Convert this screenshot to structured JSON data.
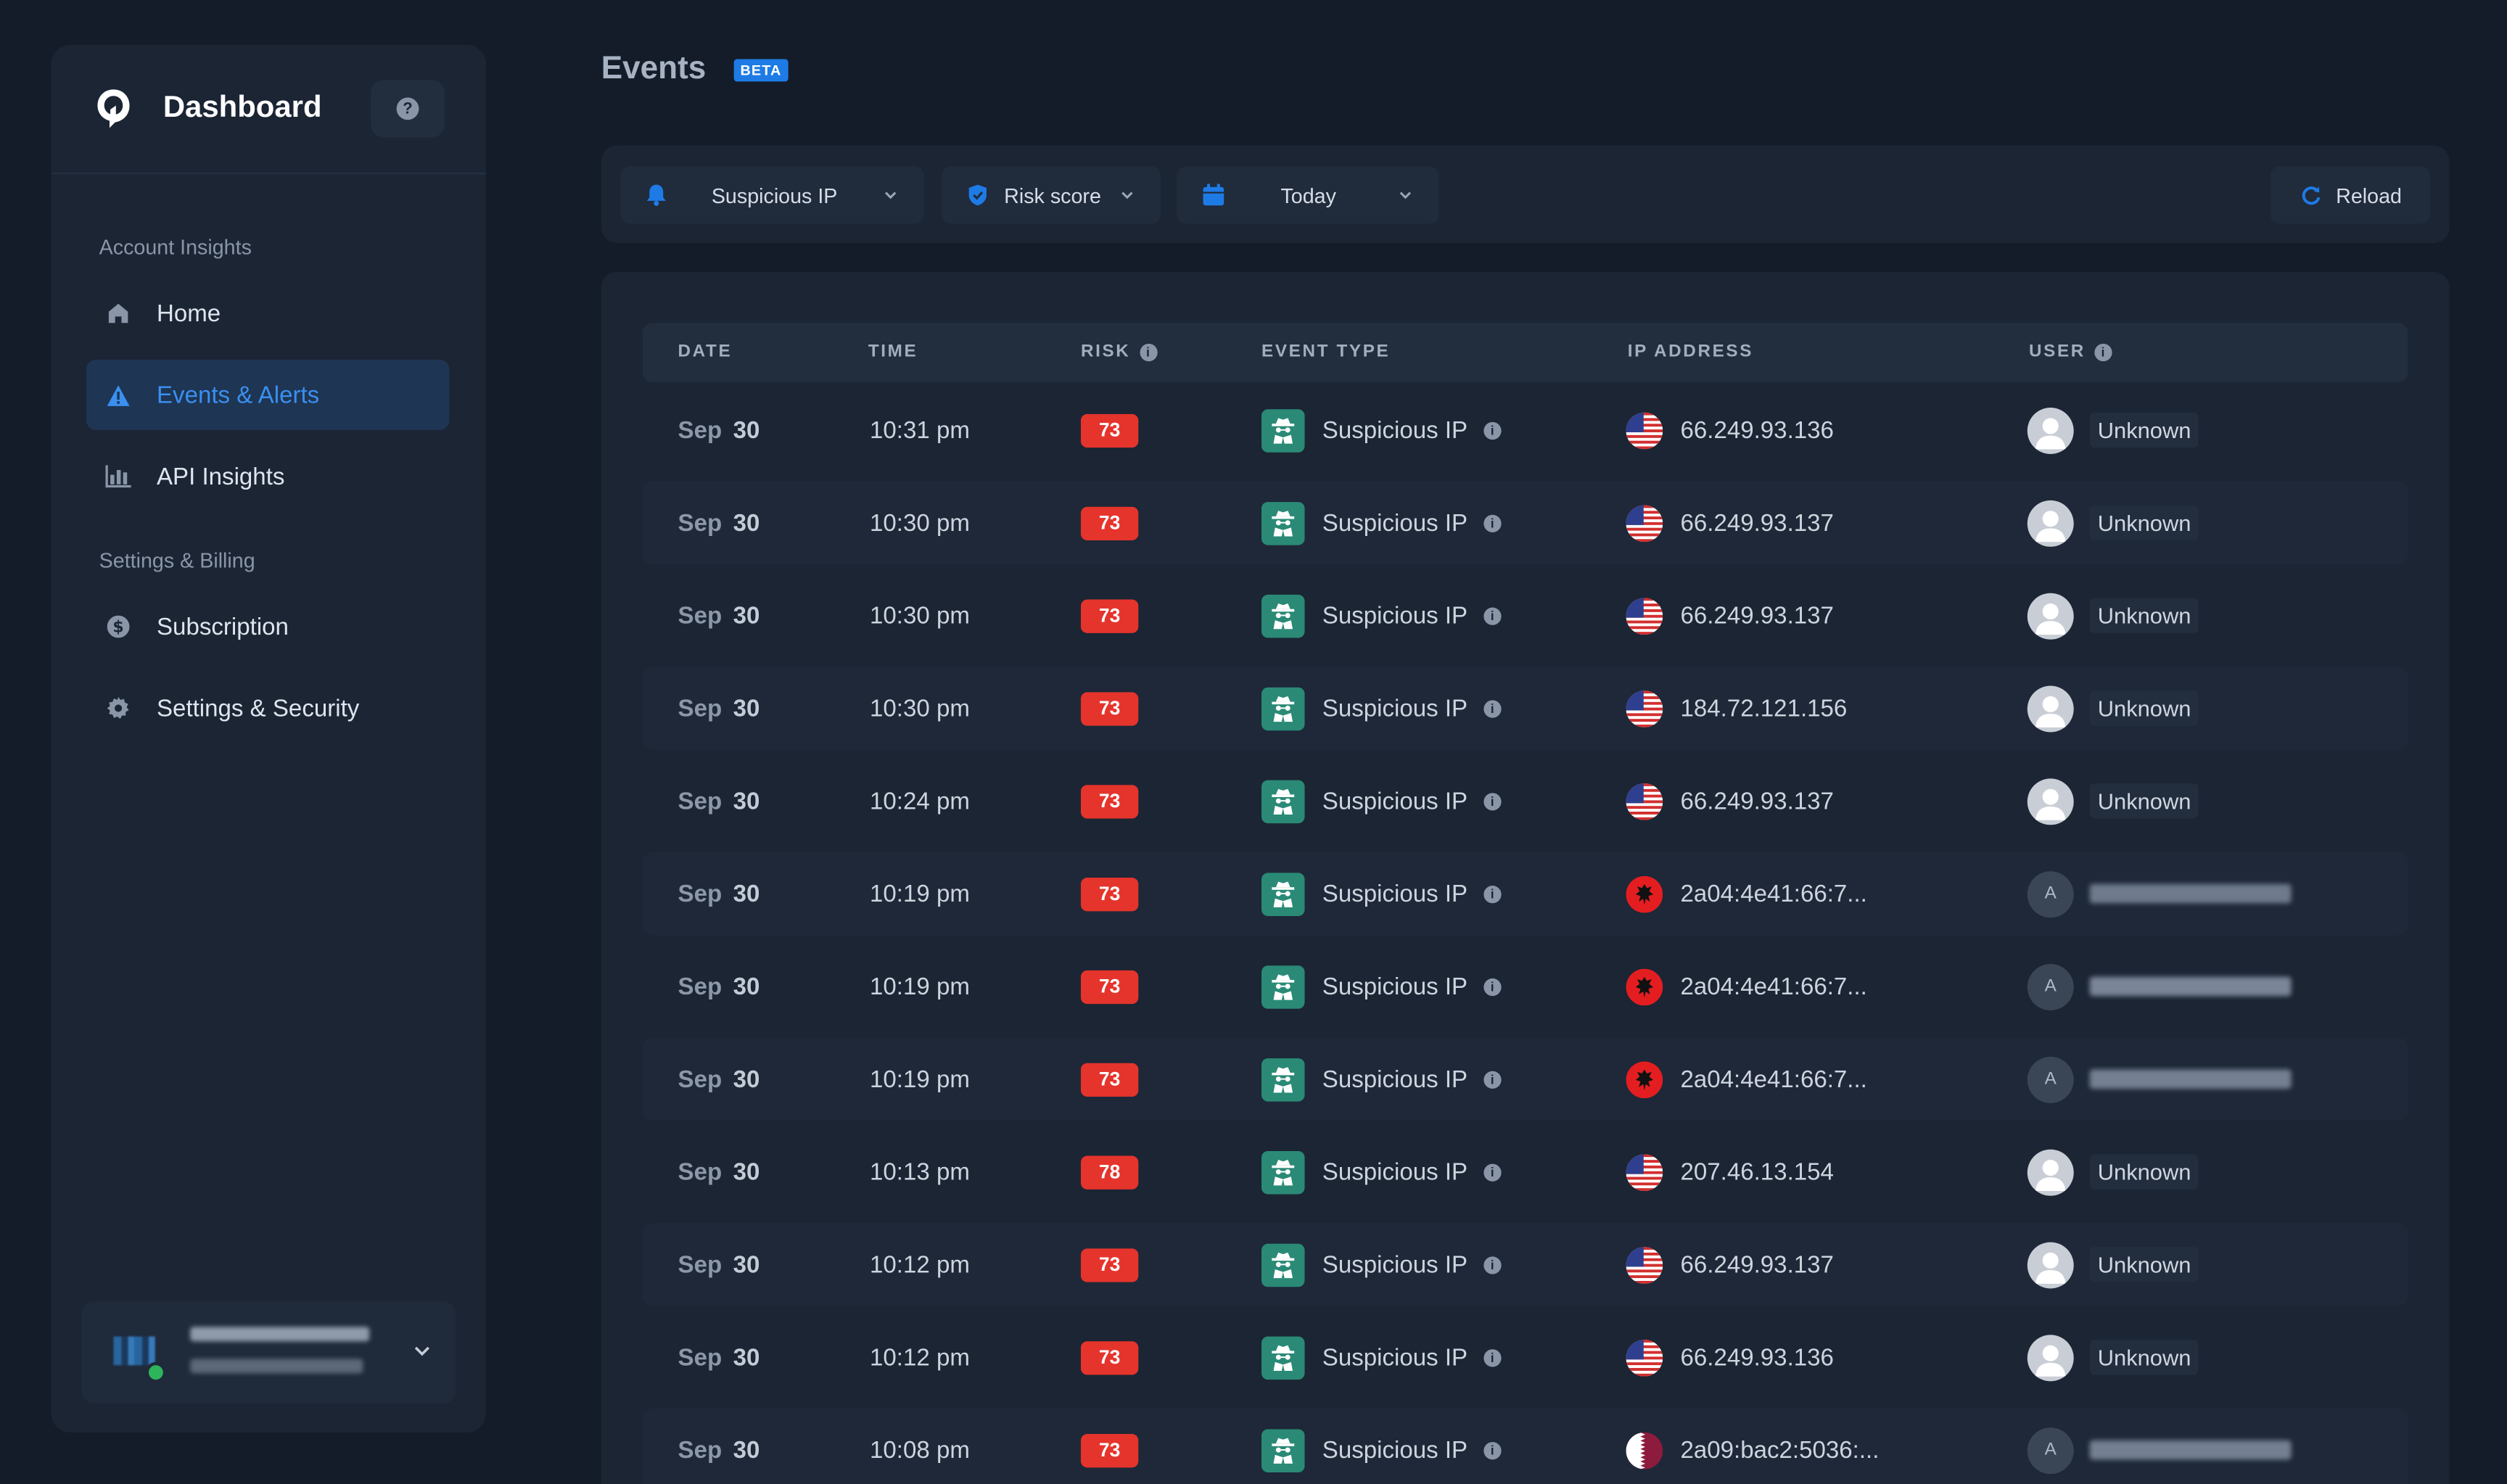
{
  "sidebar": {
    "title": "Dashboard",
    "help_label": "?",
    "sections": [
      {
        "label": "Account Insights"
      },
      {
        "label": "Settings & Billing"
      }
    ],
    "items": [
      {
        "label": "Home",
        "icon": "home-icon"
      },
      {
        "label": "Events & Alerts",
        "icon": "warning-icon",
        "active": true
      },
      {
        "label": "API Insights",
        "icon": "bar-chart-icon"
      },
      {
        "label": "Subscription",
        "icon": "dollar-icon"
      },
      {
        "label": "Settings & Security",
        "icon": "gear-icon"
      }
    ]
  },
  "header": {
    "title": "Events",
    "badge": "BETA"
  },
  "filters": {
    "event_type": "Suspicious IP",
    "risk": "Risk score",
    "date": "Today",
    "reload": "Reload"
  },
  "table": {
    "columns": [
      "DATE",
      "TIME",
      "RISK",
      "EVENT TYPE",
      "IP ADDRESS",
      "USER"
    ],
    "rows": [
      {
        "month": "Sep",
        "day": "30",
        "time": "10:31 pm",
        "risk": "73",
        "event": "Suspicious IP",
        "flag": "us",
        "ip": "66.249.93.136",
        "user": "Unknown"
      },
      {
        "month": "Sep",
        "day": "30",
        "time": "10:30 pm",
        "risk": "73",
        "event": "Suspicious IP",
        "flag": "us",
        "ip": "66.249.93.137",
        "user": "Unknown"
      },
      {
        "month": "Sep",
        "day": "30",
        "time": "10:30 pm",
        "risk": "73",
        "event": "Suspicious IP",
        "flag": "us",
        "ip": "66.249.93.137",
        "user": "Unknown"
      },
      {
        "month": "Sep",
        "day": "30",
        "time": "10:30 pm",
        "risk": "73",
        "event": "Suspicious IP",
        "flag": "us",
        "ip": "184.72.121.156",
        "user": "Unknown"
      },
      {
        "month": "Sep",
        "day": "30",
        "time": "10:24 pm",
        "risk": "73",
        "event": "Suspicious IP",
        "flag": "us",
        "ip": "66.249.93.137",
        "user": "Unknown"
      },
      {
        "month": "Sep",
        "day": "30",
        "time": "10:19 pm",
        "risk": "73",
        "event": "Suspicious IP",
        "flag": "al",
        "ip": "2a04:4e41:66:7...",
        "user": "",
        "avatar": "A"
      },
      {
        "month": "Sep",
        "day": "30",
        "time": "10:19 pm",
        "risk": "73",
        "event": "Suspicious IP",
        "flag": "al",
        "ip": "2a04:4e41:66:7...",
        "user": "",
        "avatar": "A"
      },
      {
        "month": "Sep",
        "day": "30",
        "time": "10:19 pm",
        "risk": "73",
        "event": "Suspicious IP",
        "flag": "al",
        "ip": "2a04:4e41:66:7...",
        "user": "",
        "avatar": "A"
      },
      {
        "month": "Sep",
        "day": "30",
        "time": "10:13 pm",
        "risk": "78",
        "event": "Suspicious IP",
        "flag": "us",
        "ip": "207.46.13.154",
        "user": "Unknown"
      },
      {
        "month": "Sep",
        "day": "30",
        "time": "10:12 pm",
        "risk": "73",
        "event": "Suspicious IP",
        "flag": "us",
        "ip": "66.249.93.137",
        "user": "Unknown"
      },
      {
        "month": "Sep",
        "day": "30",
        "time": "10:12 pm",
        "risk": "73",
        "event": "Suspicious IP",
        "flag": "us",
        "ip": "66.249.93.136",
        "user": "Unknown"
      },
      {
        "month": "Sep",
        "day": "30",
        "time": "10:08 pm",
        "risk": "73",
        "event": "Suspicious IP",
        "flag": "qa",
        "ip": "2a09:bac2:5036:...",
        "user": "",
        "avatar": "A"
      }
    ]
  },
  "colors": {
    "background": "#141c29",
    "panel": "#1b2534",
    "accent": "#1e7be6",
    "risk": "#e5342c",
    "event_icon": "#2a8a76",
    "online": "#2eb55b"
  }
}
